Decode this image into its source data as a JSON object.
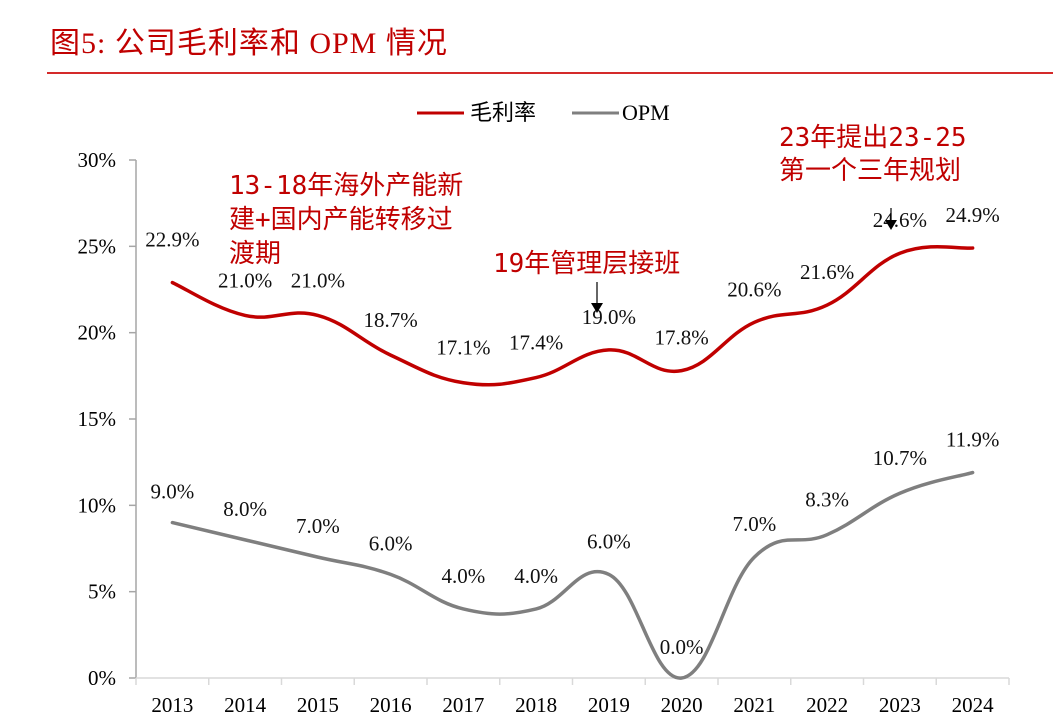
{
  "title": "图5:  公司毛利率和 OPM 情况",
  "chart_data": {
    "type": "line",
    "title": "图5: 公司毛利率和 OPM 情况",
    "xlabel": "",
    "ylabel": "",
    "categories": [
      "2013",
      "2014",
      "2015",
      "2016",
      "2017",
      "2018",
      "2019",
      "2020",
      "2021",
      "2022",
      "2023",
      "2024"
    ],
    "ylim": [
      0,
      30
    ],
    "yticks": [
      0,
      5,
      10,
      15,
      20,
      25,
      30
    ],
    "ytick_labels": [
      "0%",
      "5%",
      "10%",
      "15%",
      "20%",
      "25%",
      "30%"
    ],
    "grid": false,
    "legend_position": "top-center",
    "series": [
      {
        "name": "毛利率",
        "color": "#c00000",
        "values": [
          22.9,
          21.0,
          21.0,
          18.7,
          17.1,
          17.4,
          19.0,
          17.8,
          20.6,
          21.6,
          24.6,
          24.9
        ],
        "labels": [
          "22.9%",
          "21.0%",
          "21.0%",
          "18.7%",
          "17.1%",
          "17.4%",
          "19.0%",
          "17.8%",
          "20.6%",
          "21.6%",
          "24.6%",
          "24.9%"
        ]
      },
      {
        "name": "OPM",
        "color": "#7f7f7f",
        "values": [
          9.0,
          8.0,
          7.0,
          6.0,
          4.0,
          4.0,
          6.0,
          0.0,
          7.0,
          8.3,
          10.7,
          11.9
        ],
        "labels": [
          "9.0%",
          "8.0%",
          "7.0%",
          "6.0%",
          "4.0%",
          "4.0%",
          "6.0%",
          "0.0%",
          "7.0%",
          "8.3%",
          "10.7%",
          "11.9%"
        ]
      }
    ],
    "annotations": [
      {
        "lines": [
          "13-18年海外产能新",
          "建+国内产能转移过",
          "渡期"
        ],
        "color": "#c00000"
      },
      {
        "lines": [
          "19年管理层接班"
        ],
        "color": "#c00000",
        "arrow_to": "2019"
      },
      {
        "lines": [
          "23年提出23-25",
          "第一个三年规划"
        ],
        "color": "#c00000",
        "arrow_to": "2023"
      }
    ]
  }
}
